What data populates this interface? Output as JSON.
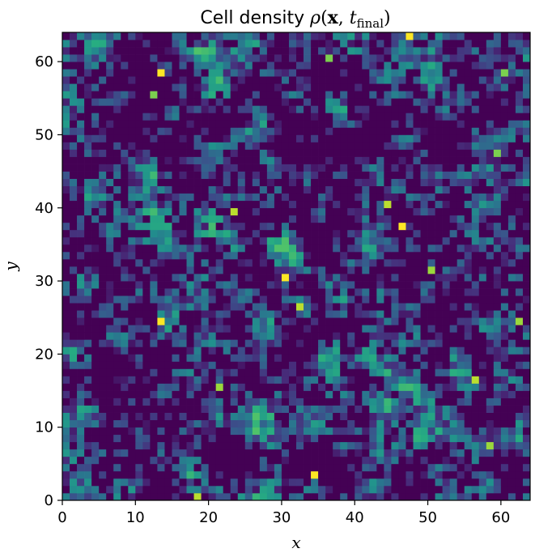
{
  "chart_data": {
    "type": "heatmap",
    "title": {
      "prefix": "Cell density",
      "rho": "ρ",
      "open": "(",
      "xvec": "x",
      "sep": ", ",
      "t": "t",
      "sub": "final",
      "close": ")"
    },
    "xlabel": "x",
    "ylabel": "y",
    "xlim": [
      0,
      64
    ],
    "ylim": [
      0,
      64
    ],
    "xticks": [
      0,
      10,
      20,
      30,
      40,
      50,
      60
    ],
    "yticks": [
      0,
      10,
      20,
      30,
      40,
      50,
      60
    ],
    "grid_size": 64,
    "colormap": "viridis",
    "colormap_stops": [
      "#440154",
      "#472c7a",
      "#3b518b",
      "#2c718e",
      "#21908d",
      "#27ad81",
      "#5cc863",
      "#aadc32",
      "#fde725"
    ],
    "value_range": [
      0,
      1
    ],
    "hot_cells": [
      {
        "x": 13,
        "y": 58,
        "v": 1.0
      },
      {
        "x": 47,
        "y": 63,
        "v": 1.0
      },
      {
        "x": 46,
        "y": 37,
        "v": 1.0
      },
      {
        "x": 44,
        "y": 40,
        "v": 0.9
      },
      {
        "x": 13,
        "y": 24,
        "v": 1.0
      },
      {
        "x": 30,
        "y": 30,
        "v": 1.0
      },
      {
        "x": 34,
        "y": 3,
        "v": 1.0
      },
      {
        "x": 56,
        "y": 16,
        "v": 0.9
      },
      {
        "x": 18,
        "y": 0,
        "v": 0.9
      },
      {
        "x": 32,
        "y": 26,
        "v": 0.9
      },
      {
        "x": 23,
        "y": 39,
        "v": 0.9
      },
      {
        "x": 62,
        "y": 24,
        "v": 0.85
      },
      {
        "x": 21,
        "y": 15,
        "v": 0.85
      },
      {
        "x": 58,
        "y": 7,
        "v": 0.85
      },
      {
        "x": 59,
        "y": 47,
        "v": 0.8
      },
      {
        "x": 50,
        "y": 31,
        "v": 0.85
      },
      {
        "x": 60,
        "y": 58,
        "v": 0.8
      },
      {
        "x": 36,
        "y": 60,
        "v": 0.8
      },
      {
        "x": 12,
        "y": 55,
        "v": 0.8
      }
    ]
  }
}
